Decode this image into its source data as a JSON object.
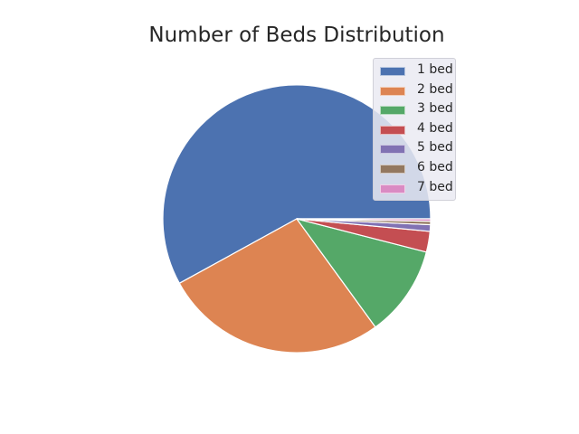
{
  "chart_data": {
    "type": "pie",
    "title": "Number of Beds Distribution",
    "labels": [
      "1 bed",
      "2 bed",
      "3 bed",
      "4 bed",
      "5 bed",
      "6 bed",
      "7 bed"
    ],
    "values": [
      58.0,
      27.0,
      11.0,
      2.5,
      0.8,
      0.4,
      0.3
    ],
    "colors": [
      "#4c72b0",
      "#dd8452",
      "#55a868",
      "#c44e52",
      "#8172b3",
      "#937860",
      "#da8bc3"
    ],
    "start_angle_deg": 0,
    "direction": "counterclockwise",
    "legend_position": "upper right"
  }
}
